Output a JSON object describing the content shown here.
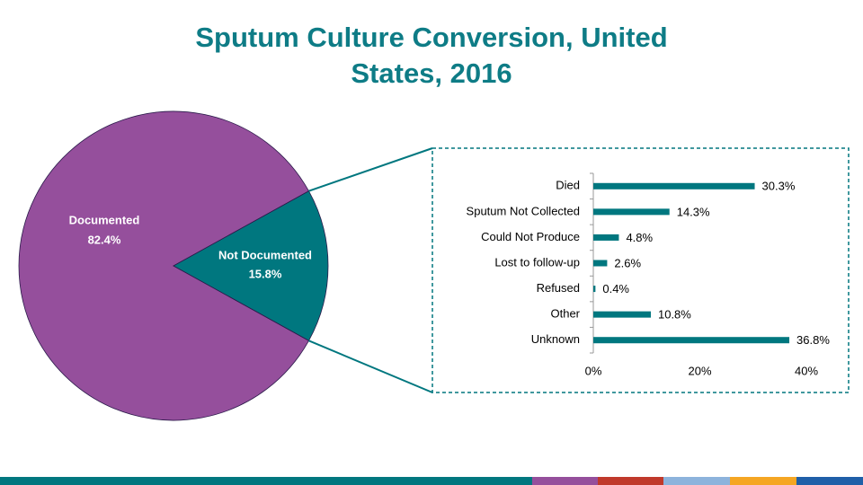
{
  "title": "Sputum Culture Conversion, United States, 2016",
  "chart_data": [
    {
      "type": "pie",
      "categories": [
        "Documented",
        "Not Documented"
      ],
      "values": [
        82.4,
        15.8
      ],
      "value_labels": [
        "82.4%",
        "15.8%"
      ],
      "colors": [
        "#954f9c",
        "#00777f"
      ]
    },
    {
      "type": "hbar",
      "categories": [
        "Died",
        "Sputum Not Collected",
        "Could Not Produce",
        "Lost to follow-up",
        "Refused",
        "Other",
        "Unknown"
      ],
      "values": [
        30.3,
        14.3,
        4.8,
        2.6,
        0.4,
        10.8,
        36.8
      ],
      "value_labels": [
        "30.3%",
        "14.3%",
        "4.8%",
        "2.6%",
        "0.4%",
        "10.8%",
        "36.8%"
      ],
      "color": "#00777f",
      "xlim": [
        0,
        40
      ],
      "xticks": [
        {
          "value": 0,
          "label": "0%"
        },
        {
          "value": 20,
          "label": "20%"
        },
        {
          "value": 40,
          "label": "40%"
        }
      ]
    }
  ]
}
